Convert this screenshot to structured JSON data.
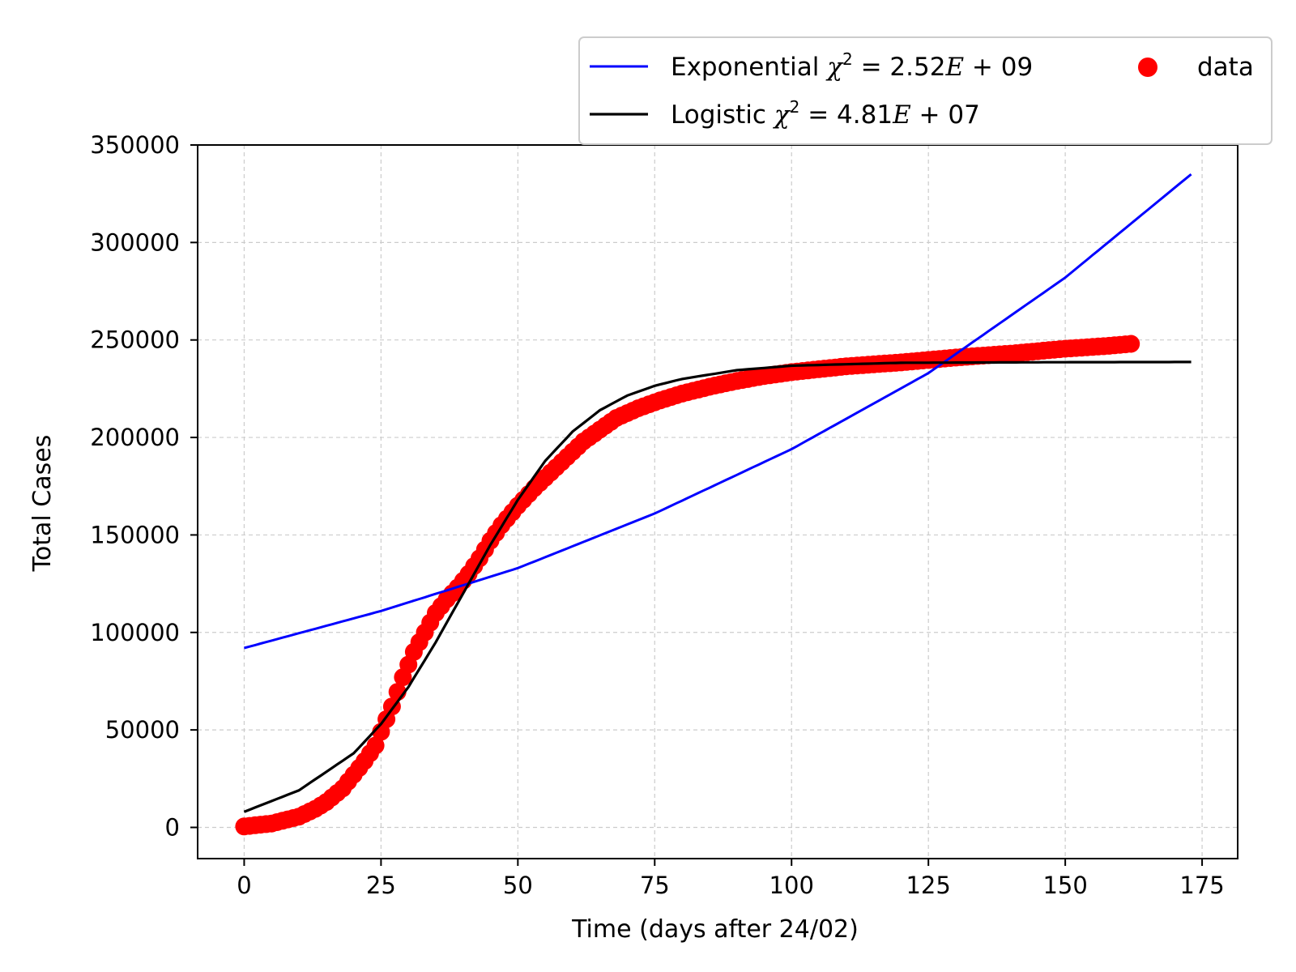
{
  "chart_data": {
    "type": "scatter",
    "xlabel": "Time (days after 24/02)",
    "ylabel": "Total Cases",
    "xlim": [
      -8.5,
      181.5
    ],
    "ylim": [
      -16000,
      350000
    ],
    "x_ticks": [
      0,
      25,
      50,
      75,
      100,
      125,
      150,
      175
    ],
    "y_ticks": [
      0,
      50000,
      100000,
      150000,
      200000,
      250000,
      300000,
      350000
    ],
    "x_tick_labels": [
      "0",
      "25",
      "50",
      "75",
      "100",
      "125",
      "150",
      "175"
    ],
    "y_tick_labels": [
      "0",
      "50000",
      "100000",
      "150000",
      "200000",
      "250000",
      "300000",
      "350000"
    ],
    "grid": true,
    "legend_placement": "top-right, above axes",
    "series": [
      {
        "name": "data",
        "kind": "scatter",
        "color": "#ff0000",
        "x": [
          0,
          5,
          10,
          13,
          15,
          18,
          20,
          22,
          24,
          25,
          27,
          29,
          31,
          33,
          35,
          37,
          39,
          41,
          43,
          45,
          47,
          50,
          53,
          56,
          59,
          62,
          65,
          68,
          72,
          76,
          80,
          85,
          90,
          95,
          100,
          110,
          120,
          130,
          140,
          150,
          158,
          162
        ],
        "y": [
          500,
          2000,
          5500,
          9500,
          13000,
          20000,
          27000,
          34000,
          42000,
          49000,
          62000,
          77000,
          90000,
          100000,
          110000,
          117000,
          123000,
          130000,
          138000,
          147000,
          155000,
          165000,
          174000,
          182000,
          190000,
          198000,
          204000,
          210000,
          215000,
          219000,
          222500,
          226000,
          229000,
          231500,
          233500,
          236500,
          238500,
          241000,
          243000,
          245500,
          247000,
          248000
        ]
      },
      {
        "name": "Exponential",
        "legend_label": "Exponential χ² = 2.52E + 09",
        "kind": "line",
        "color": "#0000ff",
        "x": [
          0,
          25,
          50,
          75,
          100,
          125,
          150,
          173
        ],
        "y": [
          92000,
          111000,
          133000,
          161000,
          194000,
          233000,
          282000,
          335000
        ]
      },
      {
        "name": "Logistic",
        "legend_label": "Logistic χ² = 4.81E + 07",
        "kind": "line",
        "color": "#000000",
        "x": [
          0,
          10,
          20,
          25,
          30,
          35,
          40,
          45,
          50,
          55,
          60,
          65,
          70,
          75,
          80,
          90,
          100,
          120,
          150,
          173
        ],
        "y": [
          8000,
          19000,
          38000,
          53000,
          72000,
          95000,
          120000,
          145000,
          168000,
          188000,
          203000,
          214000,
          221500,
          226500,
          230000,
          234500,
          236800,
          238300,
          238600,
          238700
        ]
      }
    ],
    "legend": {
      "entries": [
        {
          "prefix": "Exponential ",
          "chi": "χ",
          "sup": "2",
          "value": " = 2.52",
          "E": "E",
          "exp": " + 09"
        },
        {
          "prefix": "Logistic ",
          "chi": "χ",
          "sup": "2",
          "value": " = 4.81",
          "E": "E",
          "exp": " + 07"
        },
        {
          "label": "data"
        }
      ]
    }
  }
}
